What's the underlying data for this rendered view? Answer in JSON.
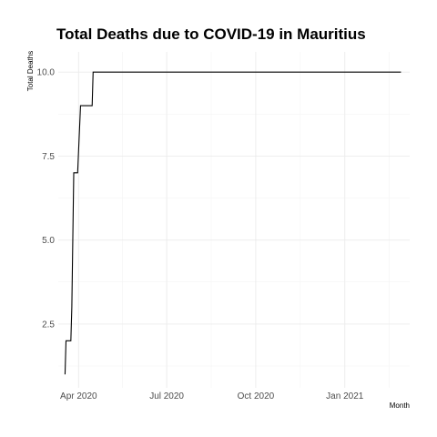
{
  "chart_data": {
    "type": "line",
    "title": "Total Deaths due to COVID-19 in Mauritius",
    "xlabel": "Month",
    "ylabel": "Total Deaths",
    "grid": true,
    "legend": "none",
    "x_is_date": true,
    "xlim": [
      "2020-03-11",
      "2021-03-09"
    ],
    "ylim": [
      0.6,
      10.6
    ],
    "x_ticks": [
      {
        "date": "2020-04-01",
        "label": "Apr 2020"
      },
      {
        "date": "2020-07-01",
        "label": "Jul 2020"
      },
      {
        "date": "2020-10-01",
        "label": "Oct 2020"
      },
      {
        "date": "2021-01-01",
        "label": "Jan 2021"
      }
    ],
    "y_ticks": [
      {
        "value": 2.5,
        "label": "2.5"
      },
      {
        "value": 5.0,
        "label": "5.0"
      },
      {
        "value": 7.5,
        "label": "7.5"
      },
      {
        "value": 10.0,
        "label": "10.0"
      }
    ],
    "series": [
      {
        "color": "#000000",
        "points": [
          {
            "x": "2020-03-18",
            "y": 1
          },
          {
            "x": "2020-03-19",
            "y": 2
          },
          {
            "x": "2020-03-24",
            "y": 2
          },
          {
            "x": "2020-03-25",
            "y": 3
          },
          {
            "x": "2020-03-26",
            "y": 5
          },
          {
            "x": "2020-03-27",
            "y": 7
          },
          {
            "x": "2020-03-30",
            "y": 7
          },
          {
            "x": "2020-03-31",
            "y": 7
          },
          {
            "x": "2020-04-03",
            "y": 9
          },
          {
            "x": "2020-04-15",
            "y": 9
          },
          {
            "x": "2020-04-16",
            "y": 10
          },
          {
            "x": "2021-02-28",
            "y": 10
          }
        ]
      }
    ]
  }
}
